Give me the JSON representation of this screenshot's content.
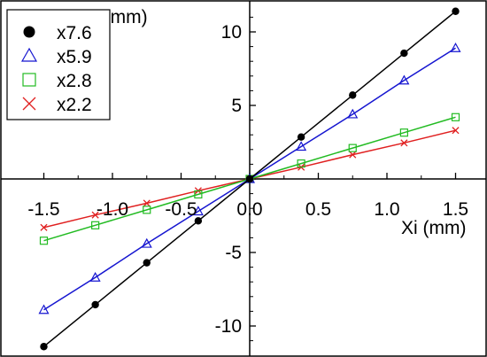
{
  "chart_data": {
    "type": "line",
    "xlabel": "Xi (mm)",
    "ylabel": "Xf (mm)",
    "xlim": [
      -1.65,
      1.65
    ],
    "ylim": [
      -12.0,
      12.0
    ],
    "xticks": [
      -1.5,
      -1.0,
      -0.5,
      0.0,
      0.5,
      1.0,
      1.5
    ],
    "xtick_labels": [
      "-1.5",
      "-1.0",
      "-0.5",
      "0.0",
      "0.5",
      "1.0",
      "1.5"
    ],
    "yticks": [
      -10,
      -5,
      5,
      10
    ],
    "ytick_labels": [
      "-10",
      "-5",
      "5",
      "10"
    ],
    "x": [
      -1.5,
      -1.125,
      -0.75,
      -0.375,
      0.0,
      0.375,
      0.75,
      1.125,
      1.5
    ],
    "legend_position": "top-left",
    "grid": false,
    "series": [
      {
        "name": "x7.6",
        "marker": "filled-circle",
        "color": "#000000",
        "values": [
          -11.4,
          -8.55,
          -5.7,
          -2.85,
          0.0,
          2.85,
          5.7,
          8.55,
          11.4
        ]
      },
      {
        "name": "x5.9",
        "marker": "open-triangle",
        "color": "#1515d0",
        "values": [
          -8.9,
          -6.7,
          -4.4,
          -2.2,
          0.0,
          2.2,
          4.4,
          6.7,
          8.9
        ]
      },
      {
        "name": "x2.8",
        "marker": "open-square",
        "color": "#22bb22",
        "values": [
          -4.2,
          -3.15,
          -2.1,
          -1.05,
          0.0,
          1.05,
          2.1,
          3.15,
          4.2
        ]
      },
      {
        "name": "x2.2",
        "marker": "x-cross",
        "color": "#e02020",
        "values": [
          -3.3,
          -2.45,
          -1.65,
          -0.8,
          0.0,
          0.8,
          1.65,
          2.45,
          3.3
        ]
      }
    ]
  }
}
